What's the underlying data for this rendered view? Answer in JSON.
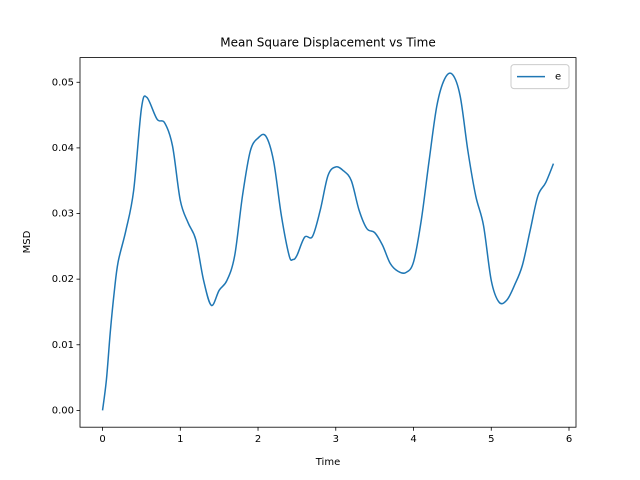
{
  "chart_data": {
    "type": "line",
    "title": "Mean Square Displacement vs Time",
    "x_label": "Time",
    "y_label": "MSD",
    "x": [
      0,
      0.05,
      0.1,
      0.15,
      0.2,
      0.3,
      0.4,
      0.5,
      0.57,
      0.7,
      0.8,
      0.9,
      1.0,
      1.1,
      1.2,
      1.3,
      1.4,
      1.5,
      1.6,
      1.7,
      1.8,
      1.9,
      2.0,
      2.1,
      2.2,
      2.3,
      2.4,
      2.45,
      2.5,
      2.6,
      2.7,
      2.8,
      2.9,
      3.0,
      3.1,
      3.2,
      3.3,
      3.4,
      3.5,
      3.6,
      3.7,
      3.8,
      3.9,
      4.0,
      4.1,
      4.2,
      4.3,
      4.4,
      4.5,
      4.6,
      4.7,
      4.8,
      4.9,
      5.0,
      5.1,
      5.2,
      5.3,
      5.4,
      5.5,
      5.6,
      5.7,
      5.8
    ],
    "series": [
      {
        "name": "e",
        "color": "#1f77b4",
        "values": [
          0,
          0.0047,
          0.012,
          0.018,
          0.0226,
          0.0274,
          0.0335,
          0.046,
          0.0477,
          0.0444,
          0.0438,
          0.0403,
          0.032,
          0.0286,
          0.026,
          0.0198,
          0.016,
          0.0183,
          0.0198,
          0.0236,
          0.0327,
          0.0395,
          0.0415,
          0.0418,
          0.038,
          0.0297,
          0.0236,
          0.023,
          0.0236,
          0.0264,
          0.0265,
          0.0305,
          0.0358,
          0.0371,
          0.0365,
          0.035,
          0.0305,
          0.0277,
          0.0271,
          0.0252,
          0.0224,
          0.0212,
          0.021,
          0.0226,
          0.029,
          0.038,
          0.0464,
          0.0505,
          0.0512,
          0.0479,
          0.0395,
          0.0327,
          0.0282,
          0.0198,
          0.0165,
          0.0168,
          0.0191,
          0.0221,
          0.0274,
          0.0327,
          0.0347,
          0.0376
        ]
      }
    ],
    "xlim": [
      -0.29,
      6.09
    ],
    "ylim": [
      -0.00256,
      0.05376
    ],
    "xticks": [
      0,
      1,
      2,
      3,
      4,
      5,
      6
    ],
    "yticks": [
      {
        "value": 0,
        "label": "0.00"
      },
      {
        "value": 0.01,
        "label": "0.01"
      },
      {
        "value": 0.02,
        "label": "0.02"
      },
      {
        "value": 0.03,
        "label": "0.03"
      },
      {
        "value": 0.04,
        "label": "0.04"
      },
      {
        "value": 0.05,
        "label": "0.05"
      }
    ],
    "legend": "upper right",
    "grid": false
  }
}
